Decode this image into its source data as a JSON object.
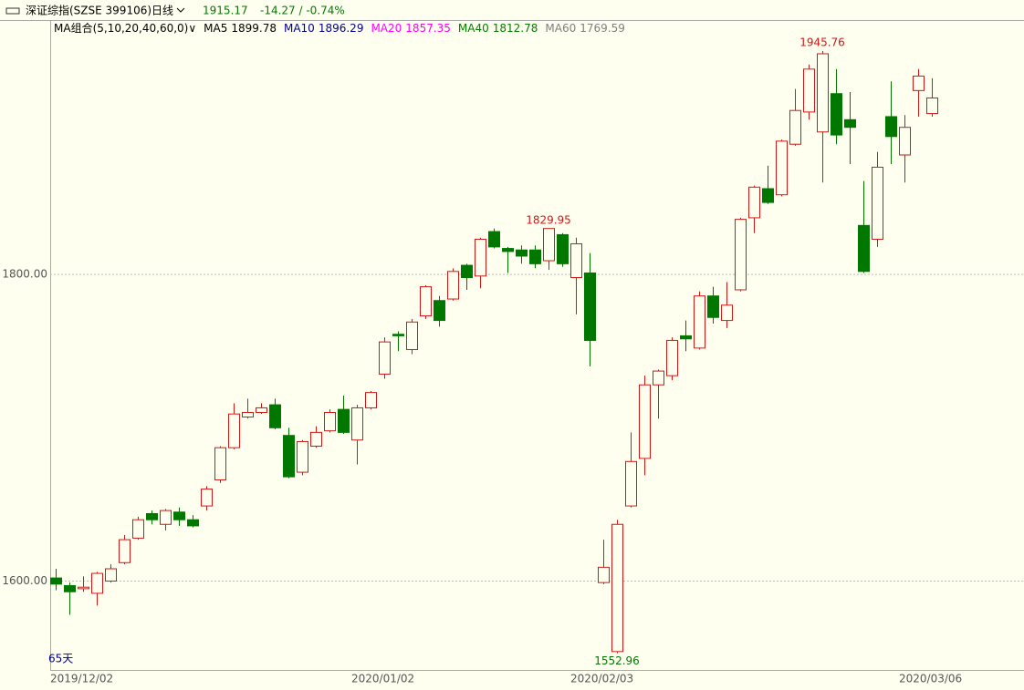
{
  "header": {
    "title": "深证综指(SZSE 399106)",
    "period": "日线",
    "price": "1915.17",
    "change": "-14.27 / -0.74%"
  },
  "chart_data": {
    "type": "candlestick",
    "ma_legend": {
      "label": "MA组合(5,10,20,40,60,0)",
      "items": [
        {
          "name": "MA5",
          "value": 1899.78,
          "color": "#000000"
        },
        {
          "name": "MA10",
          "value": 1896.29,
          "color": "#00008b"
        },
        {
          "name": "MA20",
          "value": 1857.35,
          "color": "#ff00ff"
        },
        {
          "name": "MA40",
          "value": 1812.78,
          "color": "#008000"
        },
        {
          "name": "MA60",
          "value": 1769.59,
          "color": "#808080"
        }
      ]
    },
    "period_label": "65天",
    "categories": [
      "2019/12/02",
      null,
      null,
      null,
      null,
      null,
      null,
      null,
      null,
      null,
      null,
      null,
      null,
      null,
      null,
      null,
      null,
      null,
      null,
      null,
      null,
      null,
      "2020/01/02",
      null,
      null,
      null,
      null,
      null,
      null,
      null,
      null,
      null,
      null,
      null,
      null,
      null,
      null,
      null,
      "2020/02/03",
      null,
      null,
      null,
      null,
      null,
      null,
      null,
      null,
      null,
      null,
      null,
      null,
      null,
      null,
      null,
      null,
      null,
      null,
      null,
      null,
      null,
      null,
      null,
      "2020/03/06",
      null,
      null
    ],
    "open": [
      1602,
      1597,
      1595,
      1592,
      1600,
      1612,
      1628,
      1644,
      1637,
      1645,
      1640,
      1649,
      1666,
      1687,
      1707,
      1710,
      1715,
      1695,
      1671,
      1688,
      1698,
      1712,
      1692,
      1713,
      1735,
      1761,
      1751,
      1773,
      1783,
      1784,
      1806,
      1799,
      1828,
      1817,
      1816,
      1816,
      1809,
      1826,
      1798,
      1801,
      1599,
      1554,
      1649,
      1680,
      1728,
      1734,
      1760,
      1752,
      1786,
      1770,
      1790,
      1837,
      1856,
      1852,
      1885,
      1906,
      1893,
      1918,
      1901,
      1832,
      1823,
      1903,
      1878,
      1920,
      1905
    ],
    "high": [
      1608,
      1599,
      1603,
      1606,
      1611,
      1630,
      1642,
      1646,
      1647,
      1648,
      1643,
      1662,
      1688,
      1716,
      1719,
      1716,
      1719,
      1700,
      1692,
      1701,
      1712,
      1721,
      1715,
      1724,
      1759,
      1763,
      1771,
      1793,
      1786,
      1804,
      1807,
      1824,
      1830,
      1818,
      1819,
      1819,
      1829.95,
      1827,
      1824,
      1814,
      1627,
      1640,
      1697,
      1734,
      1738,
      1759,
      1770,
      1789,
      1792,
      1795,
      1837,
      1858,
      1871,
      1888,
      1921,
      1937,
      1945.76,
      1934,
      1919,
      1861,
      1880,
      1926,
      1904,
      1934,
      1928
    ],
    "low": [
      1594,
      1578,
      1593,
      1584,
      1599,
      1611,
      1627,
      1637,
      1633,
      1636,
      1635,
      1646,
      1664,
      1686,
      1706,
      1709,
      1699,
      1667,
      1669,
      1687,
      1697,
      1696,
      1676,
      1712,
      1732,
      1750,
      1748,
      1771,
      1766,
      1783,
      1790,
      1791,
      1817,
      1801,
      1807,
      1804,
      1803,
      1805,
      1774,
      1740,
      1598,
      1552.96,
      1648,
      1669,
      1706,
      1731,
      1750,
      1751,
      1768,
      1765,
      1789,
      1827,
      1846,
      1851,
      1884,
      1901,
      1860,
      1885,
      1872,
      1801,
      1818,
      1872,
      1860,
      1903,
      1903
    ],
    "close": [
      1598,
      1593,
      1596,
      1605,
      1608,
      1627,
      1640,
      1640,
      1646,
      1640,
      1636,
      1660,
      1687,
      1709,
      1710,
      1713,
      1700,
      1668,
      1691,
      1697,
      1710,
      1697,
      1713,
      1723,
      1756,
      1760,
      1769,
      1792,
      1770,
      1802,
      1798,
      1823,
      1818,
      1815,
      1812,
      1807,
      1830,
      1807,
      1820,
      1757,
      1609,
      1637,
      1678,
      1728,
      1737,
      1757,
      1758,
      1786,
      1772,
      1780,
      1836,
      1857,
      1847,
      1887,
      1907,
      1934,
      1944,
      1891,
      1896,
      1802,
      1870,
      1890,
      1896,
      1929.44,
      1915.17
    ],
    "up_color": "#d01818",
    "down_color": "#007800",
    "ylim": [
      1542,
      1966
    ],
    "yticks": [
      {
        "value": 1600,
        "label": "1600.00"
      },
      {
        "value": 1800,
        "label": "1800.00"
      }
    ],
    "grid": true
  }
}
